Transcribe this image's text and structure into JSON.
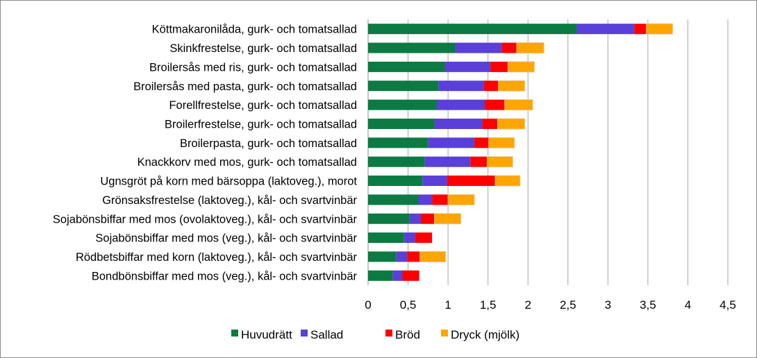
{
  "chart_data": {
    "type": "bar",
    "orientation": "horizontal",
    "stacked": true,
    "categories": [
      "Köttmakaronilåda, gurk- och tomatsallad",
      "Skinkfrestelse, gurk- och tomatsallad",
      "Broilersås med ris, gurk- och tomatsallad",
      "Broilersås med pasta, gurk- och tomatsallad",
      "Forellfrestelse, gurk- och tomatsallad",
      "Broilerfrestelse, gurk- och tomatsallad",
      "Broilerpasta, gurk- och tomatsallad",
      "Knackkorv med mos, gurk- och tomatsallad",
      "Ugnsgröt på korn med bärsoppa (laktoveg.), morot",
      "Grönsaksfrestelse (laktoveg.), kål- och svartvinbär",
      "Sojabönsbiffar med mos (ovolaktoveg.), kål- och svartvinbär",
      "Sojabönsbiffar med mos (veg.), kål- och svartvinbär",
      "Rödbetsbiffar med korn (laktoveg.), kål- och svartvinbär",
      "Bondbönsbiffar med mos (veg.), kål- och svartvinbär"
    ],
    "series": [
      {
        "name": "Huvudrätt",
        "color": "#0b7a43",
        "values": [
          2.61,
          1.09,
          0.96,
          0.88,
          0.86,
          0.83,
          0.75,
          0.71,
          0.68,
          0.63,
          0.52,
          0.45,
          0.35,
          0.31
        ]
      },
      {
        "name": "Sallad",
        "color": "#5a3fd9",
        "values": [
          0.72,
          0.58,
          0.57,
          0.57,
          0.6,
          0.6,
          0.58,
          0.57,
          0.31,
          0.17,
          0.14,
          0.14,
          0.14,
          0.12
        ]
      },
      {
        "name": "Bröd",
        "color": "#ff0000",
        "values": [
          0.15,
          0.19,
          0.22,
          0.18,
          0.25,
          0.19,
          0.18,
          0.21,
          0.6,
          0.2,
          0.17,
          0.21,
          0.16,
          0.21
        ]
      },
      {
        "name": "Dryck (mjölk)",
        "color": "#ffa500",
        "values": [
          0.33,
          0.34,
          0.33,
          0.33,
          0.35,
          0.34,
          0.32,
          0.32,
          0.31,
          0.33,
          0.33,
          0.0,
          0.32,
          0.0
        ]
      }
    ],
    "x_ticks": [
      "0",
      "0,5",
      "1",
      "1,5",
      "2",
      "2,5",
      "3",
      "3,5",
      "4",
      "4,5"
    ],
    "xlim": [
      0,
      4.5
    ],
    "grid": "vertical",
    "legend_position": "bottom"
  }
}
